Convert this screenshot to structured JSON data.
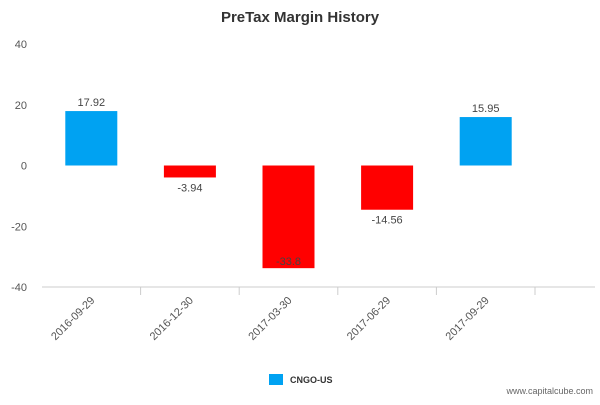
{
  "chart_data": {
    "type": "bar",
    "title": "PreTax Margin History",
    "categories": [
      "2016-09-29",
      "2016-12-30",
      "2017-03-30",
      "2017-06-29",
      "2017-09-29"
    ],
    "values": [
      17.92,
      -3.94,
      -33.8,
      -14.56,
      15.95
    ],
    "data_labels": [
      "17.92",
      "-3.94",
      "-33.8",
      "-14.56",
      "15.95"
    ],
    "ylim": [
      -40,
      40
    ],
    "yticks": [
      40,
      20,
      0,
      -20,
      -40
    ],
    "xlabel": "",
    "ylabel": "",
    "grid": false,
    "legend_position": "bottom-center",
    "series": [
      {
        "name": "CNGO-US",
        "values": [
          17.92,
          -3.94,
          -33.8,
          -14.56,
          15.95
        ]
      }
    ],
    "colors": {
      "positive": "#00a2f2",
      "negative": "#ff0000"
    }
  },
  "credit": "www.capitalcube.com"
}
